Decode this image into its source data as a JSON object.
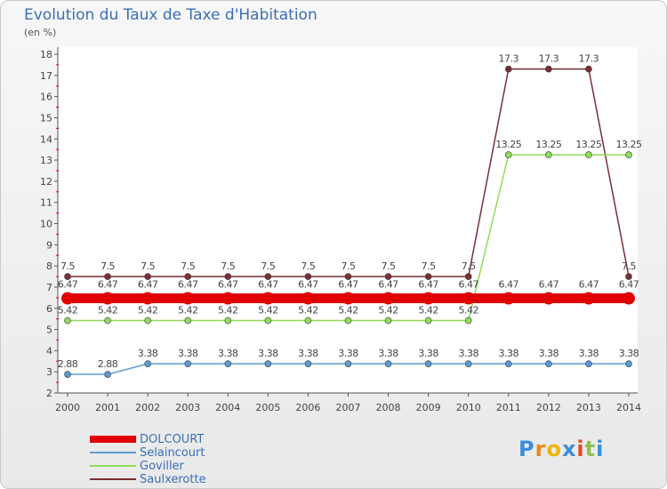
{
  "chart_data": {
    "type": "line",
    "title": "Evolution du Taux de Taxe d'Habitation",
    "ylabel": "(en %)",
    "xlabel": "",
    "x": [
      "2000",
      "2001",
      "2002",
      "2003",
      "2004",
      "2005",
      "2006",
      "2007",
      "2008",
      "2009",
      "2010",
      "2011",
      "2012",
      "2013",
      "2014"
    ],
    "ylim": [
      2,
      18
    ],
    "yticks": [
      "2",
      "3",
      "4",
      "5",
      "6",
      "7",
      "8",
      "9",
      "10",
      "11",
      "12",
      "13",
      "14",
      "15",
      "16",
      "17",
      "18"
    ],
    "grid": false,
    "series": [
      {
        "name": "DOLCOURT",
        "color": "#e00000",
        "values": [
          6.47,
          6.47,
          6.47,
          6.47,
          6.47,
          6.47,
          6.47,
          6.47,
          6.47,
          6.47,
          6.47,
          6.47,
          6.47,
          6.47,
          6.47
        ],
        "labels": [
          "6.47",
          "6.47",
          "6.47",
          "6.47",
          "6.47",
          "6.47",
          "6.47",
          "6.47",
          "6.47",
          "6.47",
          "6.47",
          "6.47",
          "6.47",
          "6.47",
          "6.47"
        ]
      },
      {
        "name": "Selaincourt",
        "color": "#5b9bd5",
        "values": [
          2.88,
          2.88,
          3.38,
          3.38,
          3.38,
          3.38,
          3.38,
          3.38,
          3.38,
          3.38,
          3.38,
          3.38,
          3.38,
          3.38,
          3.38
        ],
        "labels": [
          "2.88",
          "2.88",
          "3.38",
          "3.38",
          "3.38",
          "3.38",
          "3.38",
          "3.38",
          "3.38",
          "3.38",
          "3.38",
          "3.38",
          "3.38",
          "3.38",
          "3.38"
        ]
      },
      {
        "name": "Goviller",
        "color": "#8fdd57",
        "values": [
          5.42,
          5.42,
          5.42,
          5.42,
          5.42,
          5.42,
          5.42,
          5.42,
          5.42,
          5.42,
          5.42,
          13.25,
          13.25,
          13.25,
          13.25
        ],
        "labels": [
          "5.42",
          "5.42",
          "5.42",
          "5.42",
          "5.42",
          "5.42",
          "5.42",
          "5.42",
          "5.42",
          "5.42",
          "5.42",
          "13.25",
          "13.25",
          "13.25",
          "13.25"
        ]
      },
      {
        "name": "Saulxerotte",
        "color": "#7a2f34",
        "values": [
          7.5,
          7.5,
          7.5,
          7.5,
          7.5,
          7.5,
          7.5,
          7.5,
          7.5,
          7.5,
          7.5,
          17.3,
          17.3,
          17.3,
          7.5
        ],
        "labels": [
          "7.5",
          "7.5",
          "7.5",
          "7.5",
          "7.5",
          "7.5",
          "7.5",
          "7.5",
          "7.5",
          "7.5",
          "7.5",
          "17.3",
          "17.3",
          "17.3",
          "7.5"
        ]
      }
    ],
    "legend_position": "bottom-left"
  },
  "logo": {
    "text": "Proxiti",
    "colors": [
      "#3a8fd9",
      "#e88a1f",
      "#f2b400",
      "#3a8fd9",
      "#e84a1f",
      "#8bc34a",
      "#3a8fd9"
    ]
  }
}
